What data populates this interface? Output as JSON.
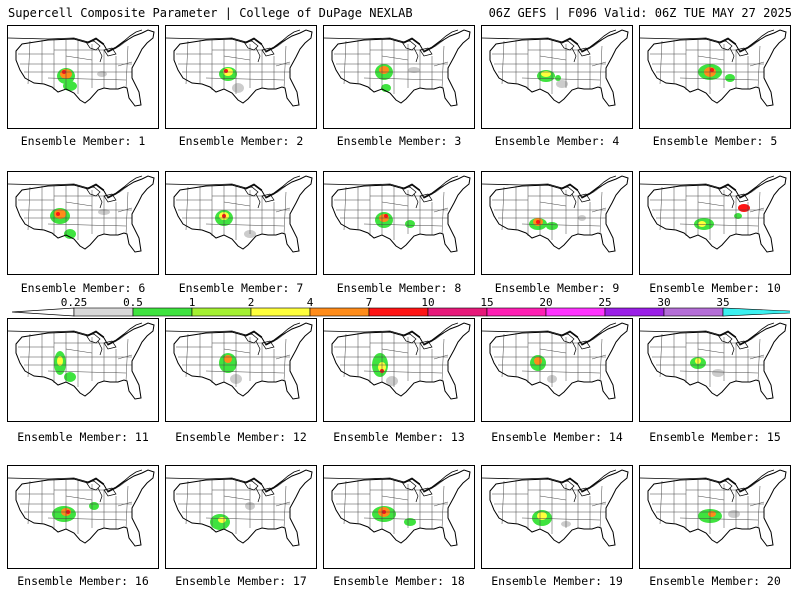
{
  "header": {
    "title_left": "Supercell Composite Parameter | College of DuPage NEXLAB",
    "title_right": "06Z GEFS | F096 Valid: 06Z TUE MAY 27 2025"
  },
  "member_label_prefix": "Ensemble Member: ",
  "members": [
    {
      "number": "1"
    },
    {
      "number": "2"
    },
    {
      "number": "3"
    },
    {
      "number": "4"
    },
    {
      "number": "5"
    },
    {
      "number": "6"
    },
    {
      "number": "7"
    },
    {
      "number": "8"
    },
    {
      "number": "9"
    },
    {
      "number": "10"
    },
    {
      "number": "11"
    },
    {
      "number": "12"
    },
    {
      "number": "13"
    },
    {
      "number": "14"
    },
    {
      "number": "15"
    },
    {
      "number": "16"
    },
    {
      "number": "17"
    },
    {
      "number": "18"
    },
    {
      "number": "19"
    },
    {
      "number": "20"
    }
  ],
  "legend": {
    "ticks": [
      "0.25",
      "0.5",
      "1",
      "2",
      "4",
      "7",
      "10",
      "15",
      "20",
      "25",
      "30",
      "35"
    ],
    "colors": [
      "#d9d9d9",
      "#3fe33f",
      "#a4f032",
      "#ffff3c",
      "#ff8c1a",
      "#ff1414",
      "#e6197a",
      "#ff1fb4",
      "#ff33ff",
      "#9a1fe6",
      "#b46ed7",
      "#3cf0f0"
    ],
    "below_color": "#ffffff"
  }
}
